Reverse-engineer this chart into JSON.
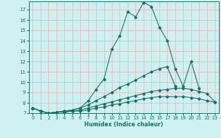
{
  "xlabel": "Humidex (Indice chaleur)",
  "ylabel": "",
  "background_color": "#cff0f0",
  "grid_color": "#e8b8b8",
  "line_color": "#1a7060",
  "xlim": [
    -0.5,
    23.5
  ],
  "ylim": [
    7.0,
    17.8
  ],
  "yticks": [
    7,
    8,
    9,
    10,
    11,
    12,
    13,
    14,
    15,
    16,
    17
  ],
  "xticks": [
    0,
    1,
    2,
    3,
    4,
    5,
    6,
    7,
    8,
    9,
    10,
    11,
    12,
    13,
    14,
    15,
    16,
    17,
    18,
    19,
    20,
    21,
    22,
    23
  ],
  "lines": [
    {
      "x": [
        0,
        1,
        2,
        3,
        4,
        5,
        6,
        7,
        8,
        9,
        10,
        11,
        12,
        13,
        14,
        15,
        16,
        17,
        18,
        19,
        20,
        21
      ],
      "y": [
        7.5,
        7.2,
        7.0,
        7.1,
        7.2,
        7.3,
        7.5,
        8.2,
        9.3,
        10.3,
        13.2,
        14.5,
        16.8,
        16.3,
        17.7,
        17.3,
        15.3,
        14.0,
        11.3,
        9.6,
        12.0,
        9.4
      ]
    },
    {
      "x": [
        0,
        1,
        2,
        3,
        4,
        5,
        6,
        7,
        8,
        9,
        10,
        11,
        12,
        13,
        14,
        15,
        16,
        17,
        18
      ],
      "y": [
        7.5,
        7.2,
        7.0,
        7.1,
        7.2,
        7.3,
        7.5,
        7.8,
        8.2,
        8.6,
        9.0,
        9.5,
        9.8,
        10.2,
        10.6,
        11.0,
        11.3,
        11.5,
        9.6
      ]
    },
    {
      "x": [
        0,
        1,
        2,
        3,
        4,
        5,
        6,
        7,
        8,
        9,
        10,
        11,
        12,
        13,
        14,
        15,
        16,
        17,
        18,
        19,
        20,
        21,
        22,
        23
      ],
      "y": [
        7.5,
        7.2,
        7.0,
        7.1,
        7.1,
        7.2,
        7.3,
        7.5,
        7.7,
        7.9,
        8.1,
        8.3,
        8.5,
        8.7,
        8.9,
        9.1,
        9.2,
        9.3,
        9.4,
        9.4,
        9.3,
        9.1,
        8.9,
        8.1
      ]
    },
    {
      "x": [
        0,
        1,
        2,
        3,
        4,
        5,
        6,
        7,
        8,
        9,
        10,
        11,
        12,
        13,
        14,
        15,
        16,
        17,
        18,
        19,
        20,
        21,
        22,
        23
      ],
      "y": [
        7.5,
        7.2,
        7.0,
        7.1,
        7.1,
        7.2,
        7.2,
        7.3,
        7.5,
        7.6,
        7.8,
        7.9,
        8.1,
        8.2,
        8.4,
        8.5,
        8.6,
        8.6,
        8.6,
        8.6,
        8.5,
        8.4,
        8.2,
        8.1
      ]
    }
  ]
}
